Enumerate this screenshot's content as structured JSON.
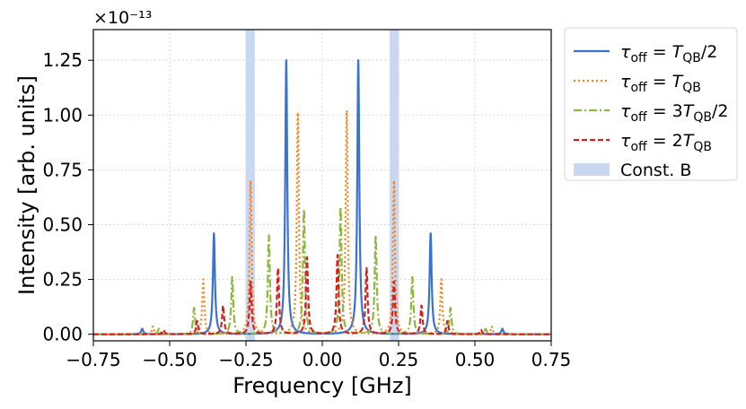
{
  "chart_data": {
    "type": "line",
    "xlabel": "Frequency [GHz]",
    "ylabel": "Intensity [arb. units]",
    "offset_text": "×10⁻¹³",
    "xlim": [
      -0.75,
      0.75
    ],
    "ylim": [
      -0.03,
      1.39
    ],
    "xticks": [
      -0.75,
      -0.5,
      -0.25,
      0.0,
      0.25,
      0.5,
      0.75
    ],
    "xtick_labels": [
      "−0.75",
      "−0.50",
      "−0.25",
      "0.00",
      "0.25",
      "0.50",
      "0.75"
    ],
    "yticks": [
      0.0,
      0.25,
      0.5,
      0.75,
      1.0,
      1.25
    ],
    "ytick_labels": [
      "0.00",
      "0.25",
      "0.50",
      "0.75",
      "1.00",
      "1.25"
    ],
    "grid": true,
    "legend_position": "outside-right",
    "line_width_ghz": 0.004,
    "series": [
      {
        "name": "τ_off = T_QB/2",
        "label_parts": [
          "τ",
          "off",
          " = ",
          "T",
          "QB",
          "/2"
        ],
        "color": "#3a72d0",
        "style": "solid",
        "peaks": [
          [
            -0.59,
            0.025
          ],
          [
            -0.355,
            0.46
          ],
          [
            -0.118,
            1.25
          ],
          [
            0.118,
            1.25
          ],
          [
            0.355,
            0.46
          ],
          [
            0.59,
            0.025
          ]
        ]
      },
      {
        "name": "τ_off = T_QB",
        "label_parts": [
          "τ",
          "off",
          " = ",
          "T",
          "QB",
          ""
        ],
        "color": "#ff7f0e",
        "style": "dotted",
        "peaks": [
          [
            -0.555,
            0.035
          ],
          [
            -0.39,
            0.25
          ],
          [
            -0.235,
            0.7
          ],
          [
            -0.08,
            1.01
          ],
          [
            0.08,
            1.02
          ],
          [
            0.235,
            0.7
          ],
          [
            0.39,
            0.25
          ],
          [
            0.555,
            0.035
          ]
        ]
      },
      {
        "name": "τ_off = 3T_QB/2",
        "label_parts": [
          "τ",
          "off",
          " = 3",
          "T",
          "QB",
          "/2"
        ],
        "color": "#8db83f",
        "style": "dashdot",
        "peaks": [
          [
            -0.535,
            0.025
          ],
          [
            -0.42,
            0.12
          ],
          [
            -0.295,
            0.26
          ],
          [
            -0.175,
            0.45
          ],
          [
            -0.06,
            0.57
          ],
          [
            0.06,
            0.58
          ],
          [
            0.175,
            0.45
          ],
          [
            0.295,
            0.26
          ],
          [
            0.42,
            0.12
          ],
          [
            0.535,
            0.025
          ]
        ]
      },
      {
        "name": "τ_off = 2T_QB",
        "label_parts": [
          "τ",
          "off",
          " = 2",
          "T",
          "QB",
          ""
        ],
        "color": "#d62020",
        "style": "dashed",
        "peaks": [
          [
            -0.52,
            0.02
          ],
          [
            -0.41,
            0.06
          ],
          [
            -0.325,
            0.13
          ],
          [
            -0.235,
            0.24
          ],
          [
            -0.145,
            0.3
          ],
          [
            -0.05,
            0.35
          ],
          [
            0.05,
            0.36
          ],
          [
            0.145,
            0.3
          ],
          [
            0.235,
            0.24
          ],
          [
            0.325,
            0.13
          ],
          [
            0.41,
            0.06
          ],
          [
            0.52,
            0.02
          ]
        ]
      }
    ],
    "bands": {
      "name": "Const. B",
      "color": "#c9d8f0",
      "centers": [
        -0.236,
        0.236
      ],
      "width": 0.03
    }
  }
}
